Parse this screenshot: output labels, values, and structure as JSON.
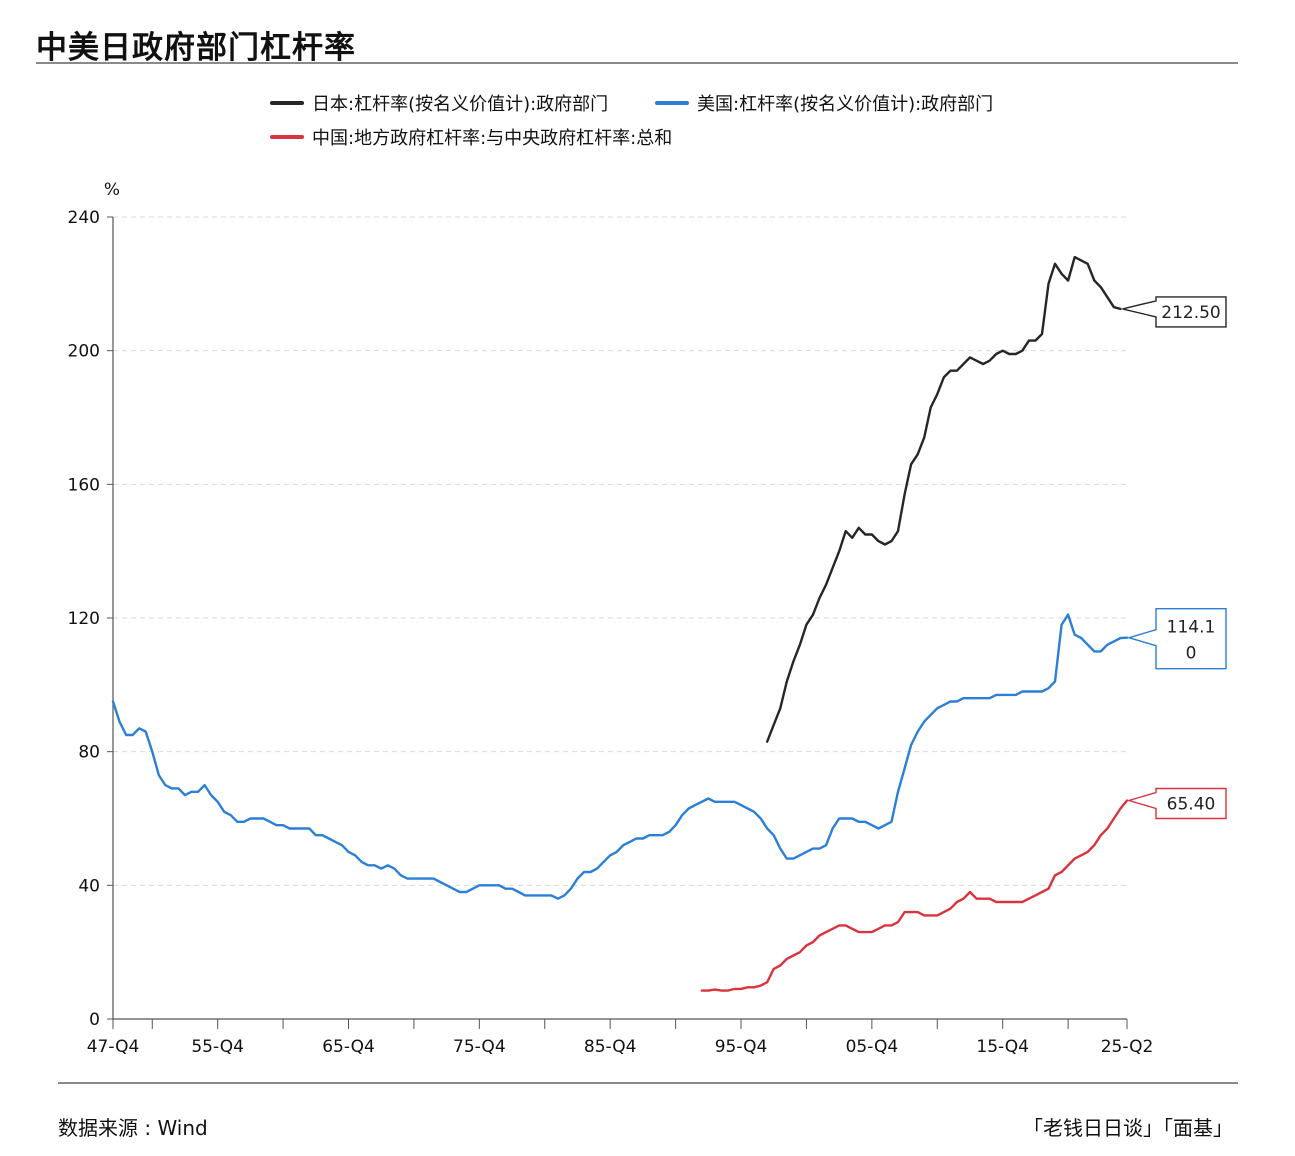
{
  "title": "中美日政府部门杠杆率",
  "footer": {
    "source": "数据来源 : Wind",
    "brand": "「老钱日日谈」「面基」"
  },
  "colors": {
    "japan": "#262626",
    "usa": "#2b7fd6",
    "china": "#d9343e",
    "grid": "#d9d9d9",
    "axis": "#555555"
  },
  "chart_data": {
    "type": "line",
    "ylabel": "%",
    "ylim": [
      0,
      240
    ],
    "yticks": [
      "0",
      "40",
      "80",
      "120",
      "160",
      "200",
      "240"
    ],
    "xlim": [
      1947.75,
      2025.25
    ],
    "xtick_labels": [
      "47-Q4",
      "55-Q4",
      "65-Q4",
      "75-Q4",
      "85-Q4",
      "95-Q4",
      "05-Q4",
      "15-Q4",
      "25-Q2"
    ],
    "xtick_years": [
      1947.75,
      1955.75,
      1965.75,
      1975.75,
      1985.75,
      1995.75,
      2005.75,
      2015.75,
      2025.25
    ],
    "minor_tick_years": [
      1950.75,
      1960.75,
      1970.75,
      1980.75,
      1990.75,
      2000.75,
      2010.75,
      2020.75
    ],
    "grid": "horizontal dashed",
    "legend_position": "top",
    "series": [
      {
        "name": "日本:杠杆率(按名义价值计):政府部门",
        "color_key": "japan",
        "last_label": "212.50",
        "x": [
          1997.75,
          1998.25,
          1998.75,
          1999.25,
          1999.75,
          2000.25,
          2000.75,
          2001.25,
          2001.75,
          2002.25,
          2002.75,
          2003.25,
          2003.75,
          2004.25,
          2004.75,
          2005.25,
          2005.75,
          2006.25,
          2006.75,
          2007.25,
          2007.75,
          2008.25,
          2008.75,
          2009.25,
          2009.75,
          2010.25,
          2010.75,
          2011.25,
          2011.75,
          2012.25,
          2012.75,
          2013.25,
          2013.75,
          2014.25,
          2014.75,
          2015.25,
          2015.75,
          2016.25,
          2016.75,
          2017.25,
          2017.75,
          2018.25,
          2018.75,
          2019.25,
          2019.75,
          2020.25,
          2020.75,
          2021.25,
          2021.75,
          2022.25,
          2022.75,
          2023.25,
          2023.75,
          2024.25,
          2024.75
        ],
        "values": [
          83,
          88,
          93,
          101,
          107,
          112,
          118,
          121,
          126,
          130,
          135,
          140,
          146,
          144,
          147,
          145,
          145,
          143,
          142,
          143,
          146,
          157,
          166,
          169,
          174,
          183,
          187,
          192,
          194,
          194,
          196,
          198,
          197,
          196,
          197,
          199,
          200,
          199,
          199,
          200,
          203,
          203,
          205,
          220,
          226,
          223,
          221,
          228,
          227,
          226,
          221,
          219,
          216,
          213,
          212.5
        ]
      },
      {
        "name": "美国:杠杆率(按名义价值计):政府部门",
        "color_key": "usa",
        "last_label": "114.10",
        "x": [
          1947.75,
          1948.25,
          1948.75,
          1949.25,
          1949.75,
          1950.25,
          1950.75,
          1951.25,
          1951.75,
          1952.25,
          1952.75,
          1953.25,
          1953.75,
          1954.25,
          1954.75,
          1955.25,
          1955.75,
          1956.25,
          1956.75,
          1957.25,
          1957.75,
          1958.25,
          1958.75,
          1959.25,
          1959.75,
          1960.25,
          1960.75,
          1961.25,
          1961.75,
          1962.25,
          1962.75,
          1963.25,
          1963.75,
          1964.25,
          1964.75,
          1965.25,
          1965.75,
          1966.25,
          1966.75,
          1967.25,
          1967.75,
          1968.25,
          1968.75,
          1969.25,
          1969.75,
          1970.25,
          1970.75,
          1971.25,
          1971.75,
          1972.25,
          1972.75,
          1973.25,
          1973.75,
          1974.25,
          1974.75,
          1975.25,
          1975.75,
          1976.25,
          1976.75,
          1977.25,
          1977.75,
          1978.25,
          1978.75,
          1979.25,
          1979.75,
          1980.25,
          1980.75,
          1981.25,
          1981.75,
          1982.25,
          1982.75,
          1983.25,
          1983.75,
          1984.25,
          1984.75,
          1985.25,
          1985.75,
          1986.25,
          1986.75,
          1987.25,
          1987.75,
          1988.25,
          1988.75,
          1989.25,
          1989.75,
          1990.25,
          1990.75,
          1991.25,
          1991.75,
          1992.25,
          1992.75,
          1993.25,
          1993.75,
          1994.25,
          1994.75,
          1995.25,
          1995.75,
          1996.25,
          1996.75,
          1997.25,
          1997.75,
          1998.25,
          1998.75,
          1999.25,
          1999.75,
          2000.25,
          2000.75,
          2001.25,
          2001.75,
          2002.25,
          2002.75,
          2003.25,
          2003.75,
          2004.25,
          2004.75,
          2005.25,
          2005.75,
          2006.25,
          2006.75,
          2007.25,
          2007.75,
          2008.25,
          2008.75,
          2009.25,
          2009.75,
          2010.25,
          2010.75,
          2011.25,
          2011.75,
          2012.25,
          2012.75,
          2013.25,
          2013.75,
          2014.25,
          2014.75,
          2015.25,
          2015.75,
          2016.25,
          2016.75,
          2017.25,
          2017.75,
          2018.25,
          2018.75,
          2019.25,
          2019.75,
          2020.25,
          2020.75,
          2021.25,
          2021.75,
          2022.25,
          2022.75,
          2023.25,
          2023.75,
          2024.25,
          2024.75,
          2025.25
        ],
        "values": [
          95,
          89,
          85,
          85,
          87,
          86,
          80,
          73,
          70,
          69,
          69,
          67,
          68,
          68,
          70,
          67,
          65,
          62,
          61,
          59,
          59,
          60,
          60,
          60,
          59,
          58,
          58,
          57,
          57,
          57,
          57,
          55,
          55,
          54,
          53,
          52,
          50,
          49,
          47,
          46,
          46,
          45,
          46,
          45,
          43,
          42,
          42,
          42,
          42,
          42,
          41,
          40,
          39,
          38,
          38,
          39,
          40,
          40,
          40,
          40,
          39,
          39,
          38,
          37,
          37,
          37,
          37,
          37,
          36,
          37,
          39,
          42,
          44,
          44,
          45,
          47,
          49,
          50,
          52,
          53,
          54,
          54,
          55,
          55,
          55,
          56,
          58,
          61,
          63,
          64,
          65,
          66,
          65,
          65,
          65,
          65,
          64,
          63,
          62,
          60,
          57,
          55,
          51,
          48,
          48,
          49,
          50,
          51,
          51,
          52,
          57,
          60,
          60,
          60,
          59,
          59,
          58,
          57,
          58,
          59,
          68,
          75,
          82,
          86,
          89,
          91,
          93,
          94,
          95,
          95,
          96,
          96,
          96,
          96,
          96,
          97,
          97,
          97,
          97,
          98,
          98,
          98,
          98,
          99,
          101,
          118,
          121,
          115,
          114,
          112,
          110,
          110,
          112,
          113,
          114,
          114.1
        ]
      },
      {
        "name": "中国:地方政府杠杆率:与中央政府杠杆率:总和",
        "color_key": "china",
        "last_label": "65.40",
        "x": [
          1992.75,
          1993.25,
          1993.75,
          1994.25,
          1994.75,
          1995.25,
          1995.75,
          1996.25,
          1996.75,
          1997.25,
          1997.75,
          1998.25,
          1998.75,
          1999.25,
          1999.75,
          2000.25,
          2000.75,
          2001.25,
          2001.75,
          2002.25,
          2002.75,
          2003.25,
          2003.75,
          2004.25,
          2004.75,
          2005.25,
          2005.75,
          2006.25,
          2006.75,
          2007.25,
          2007.75,
          2008.25,
          2008.75,
          2009.25,
          2009.75,
          2010.25,
          2010.75,
          2011.25,
          2011.75,
          2012.25,
          2012.75,
          2013.25,
          2013.75,
          2014.25,
          2014.75,
          2015.25,
          2015.75,
          2016.25,
          2016.75,
          2017.25,
          2017.75,
          2018.25,
          2018.75,
          2019.25,
          2019.75,
          2020.25,
          2020.75,
          2021.25,
          2021.75,
          2022.25,
          2022.75,
          2023.25,
          2023.75,
          2024.25,
          2024.75,
          2025.25
        ],
        "values": [
          8.5,
          8.5,
          8.8,
          8.5,
          8.5,
          9,
          9,
          9.5,
          9.5,
          10,
          11,
          15,
          16,
          18,
          19,
          20,
          22,
          23,
          25,
          26,
          27,
          28,
          28,
          27,
          26,
          26,
          26,
          27,
          28,
          28,
          29,
          32,
          32,
          32,
          31,
          31,
          31,
          32,
          33,
          35,
          36,
          38,
          36,
          36,
          36,
          35,
          35,
          35,
          35,
          35,
          36,
          37,
          38,
          39,
          43,
          44,
          46,
          48,
          49,
          50,
          52,
          55,
          57,
          60,
          63,
          65.4
        ]
      }
    ]
  }
}
